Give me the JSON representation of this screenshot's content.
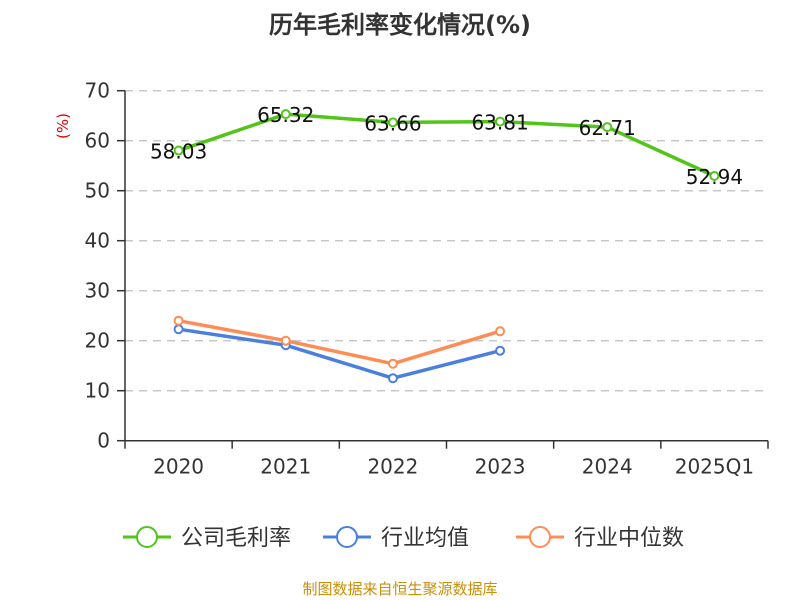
{
  "chart_data": {
    "type": "line",
    "title": "历年毛利率变化情况(%)",
    "ylabel": "(%)",
    "xlabel": "",
    "categories": [
      "2020",
      "2021",
      "2022",
      "2023",
      "2024",
      "2025Q1"
    ],
    "ylim": [
      0,
      70
    ],
    "yticks": [
      0,
      10,
      20,
      30,
      40,
      50,
      60,
      70
    ],
    "grid": true,
    "legend_position": "bottom",
    "series": [
      {
        "name": "公司毛利率",
        "color": "#52c41a",
        "values": [
          58.03,
          65.32,
          63.66,
          63.81,
          62.71,
          52.94
        ],
        "labels": [
          "58.03",
          "65.32",
          "63.66",
          "63.81",
          "62.71",
          "52.94"
        ]
      },
      {
        "name": "行业均值",
        "color": "#4a7fe0",
        "values": [
          22.3,
          19.1,
          12.5,
          18.0,
          null,
          null
        ]
      },
      {
        "name": "行业中位数",
        "color": "#ff8c55",
        "values": [
          24.0,
          20.0,
          15.4,
          21.9,
          null,
          null
        ]
      }
    ],
    "source": "制图数据来自恒生聚源数据库"
  }
}
